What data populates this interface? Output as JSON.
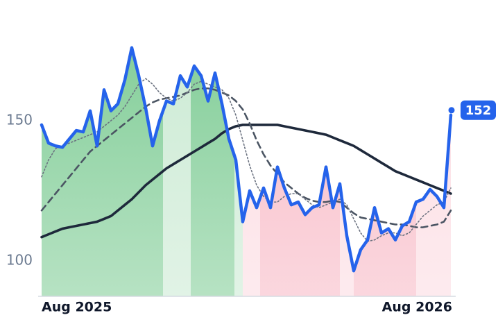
{
  "chart_data": {
    "type": "line",
    "categories": [
      "Aug 2025",
      null,
      null,
      null,
      null,
      null,
      null,
      null,
      null,
      null,
      null,
      null,
      null,
      null,
      null,
      null,
      null,
      null,
      null,
      null,
      null,
      null,
      null,
      null,
      null,
      null,
      null,
      null,
      null,
      null,
      null,
      null,
      null,
      null,
      null,
      null,
      null,
      null,
      null,
      null,
      null,
      null,
      null,
      null,
      null,
      null,
      null,
      null,
      null,
      null,
      null,
      null,
      null,
      null,
      null,
      null,
      null,
      null,
      null,
      "Aug 2026"
    ],
    "ylim": [
      87.4,
      193
    ],
    "yticks": [
      100,
      150
    ],
    "series": [
      {
        "color": "#2563eb",
        "values": [
          148.5,
          142,
          141,
          140.5,
          143.5,
          146.5,
          146,
          153.5,
          141,
          161,
          153.5,
          156,
          164.5,
          176,
          166,
          154.5,
          141,
          150,
          157,
          156,
          166,
          162,
          169.5,
          166,
          157,
          167,
          156,
          143.5,
          136,
          114,
          125,
          119,
          126,
          119,
          133.5,
          126,
          120,
          121,
          116.5,
          119,
          120,
          133.5,
          119,
          127.5,
          109,
          96.5,
          104,
          107.5,
          119,
          110,
          111.5,
          107.5,
          112.5,
          114,
          121,
          122,
          125.5,
          123,
          119,
          152
        ]
      },
      {
        "color": "#6b7280",
        "values": [
          130,
          136,
          140,
          141,
          142,
          143,
          144,
          145,
          146,
          148,
          150,
          152,
          155,
          159,
          163,
          165,
          163,
          160,
          158,
          157,
          158,
          160,
          163,
          164,
          163,
          162,
          161,
          158,
          152,
          143,
          134,
          127,
          123,
          121,
          121,
          123,
          124,
          124,
          122,
          120,
          119,
          120,
          121,
          122,
          120,
          115,
          110,
          107,
          107.5,
          109,
          110,
          110,
          109,
          110,
          113,
          116,
          118,
          120,
          121,
          126
        ]
      },
      {
        "color": "#4b5563",
        "values": [
          118,
          121,
          124,
          127,
          130,
          133,
          136,
          139,
          141,
          143,
          145,
          147,
          149,
          151,
          153,
          155,
          156.5,
          157.5,
          158,
          158.5,
          159,
          160,
          161,
          161.5,
          161.5,
          161,
          160,
          159,
          157,
          154,
          149,
          143,
          138,
          134,
          131,
          128,
          126,
          124,
          122.5,
          121.5,
          121,
          121,
          121.5,
          121,
          119,
          117,
          115.5,
          115,
          114.5,
          114,
          113.5,
          113,
          113,
          112.5,
          112,
          112,
          112.5,
          113,
          114,
          118
        ]
      },
      {
        "color": "#1e293b",
        "values": [
          108.5,
          109.5,
          110.5,
          111.5,
          112,
          112.5,
          113,
          113.5,
          114,
          115,
          116,
          118,
          120,
          122,
          124.5,
          127,
          129,
          131,
          133,
          134.5,
          136,
          137.5,
          139,
          140.5,
          142,
          143.5,
          145.5,
          147,
          148,
          148.5,
          148.5,
          148.5,
          148.5,
          148.5,
          148.5,
          148,
          147.5,
          147,
          146.5,
          146,
          145.5,
          145,
          144,
          143,
          142,
          141,
          139.5,
          138,
          136.5,
          135,
          133.5,
          132,
          131,
          130,
          129,
          128,
          127,
          126,
          125,
          124
        ]
      }
    ],
    "fill_segments": [
      {
        "from": -0.1,
        "to": 17.5,
        "color": "#86cf9b"
      },
      {
        "from": 17.5,
        "to": 21.5,
        "color": "#cdebd5"
      },
      {
        "from": 21.5,
        "to": 27.8,
        "color": "#86cf9b"
      },
      {
        "from": 27.8,
        "to": 29,
        "color": "#cdebd5"
      },
      {
        "from": 29,
        "to": 31.5,
        "color": "#fcdde3"
      },
      {
        "from": 31.5,
        "to": 43,
        "color": "#f8bcc8"
      },
      {
        "from": 43,
        "to": 45,
        "color": "#fcdde3"
      },
      {
        "from": 45,
        "to": 54,
        "color": "#f8bcc8"
      },
      {
        "from": 54,
        "to": 59.1,
        "color": "#fcdde3"
      }
    ]
  }
}
